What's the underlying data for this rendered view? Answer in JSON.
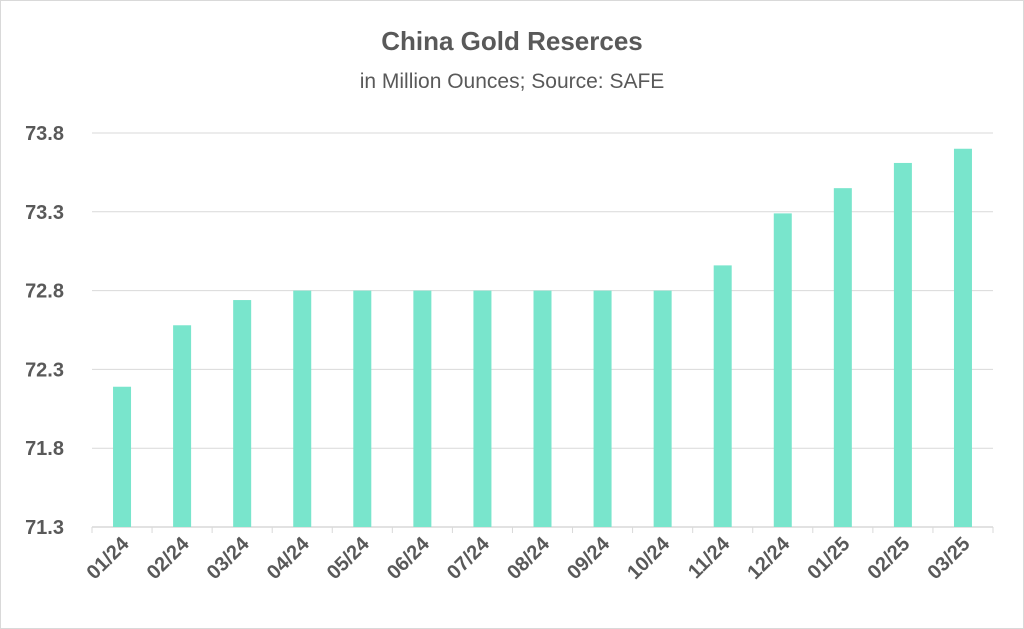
{
  "chart_data": {
    "type": "bar",
    "title": "China Gold Reserces",
    "subtitle": "in Million Ounces; Source: SAFE",
    "xlabel": "",
    "ylabel": "",
    "categories": [
      "01/24",
      "02/24",
      "03/24",
      "04/24",
      "05/24",
      "06/24",
      "07/24",
      "08/24",
      "09/24",
      "10/24",
      "11/24",
      "12/24",
      "01/25",
      "02/25",
      "03/25"
    ],
    "values": [
      72.19,
      72.58,
      72.74,
      72.8,
      72.8,
      72.8,
      72.8,
      72.8,
      72.8,
      72.8,
      72.96,
      73.29,
      73.45,
      73.61,
      73.7
    ],
    "ylim": [
      71.3,
      73.8
    ],
    "yticks": [
      "71.3",
      "71.8",
      "72.3",
      "72.8",
      "73.3",
      "73.8"
    ],
    "grid": true,
    "legend": "none",
    "colors": {
      "bar": "#79e5cc",
      "grid": "#d9d9d9",
      "text": "#595959"
    }
  }
}
